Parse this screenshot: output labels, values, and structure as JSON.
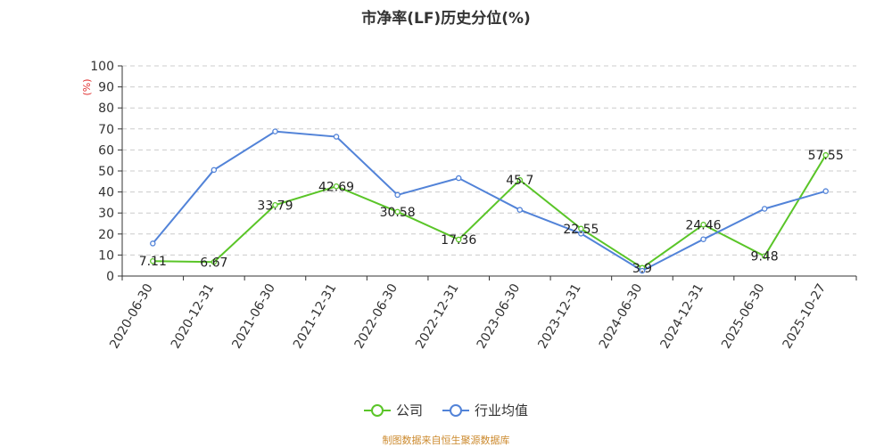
{
  "chart_data": {
    "type": "line",
    "title": "市净率(LF)历史分位(%)",
    "ylabel": "(%)",
    "ylim": [
      0,
      100
    ],
    "yticks": [
      0,
      10,
      20,
      30,
      40,
      50,
      60,
      70,
      80,
      90,
      100
    ],
    "grid": true,
    "legend_position": "bottom",
    "categories": [
      "2020-06-30",
      "2020-12-31",
      "2021-06-30",
      "2021-12-31",
      "2022-06-30",
      "2022-12-31",
      "2023-06-30",
      "2023-12-31",
      "2024-06-30",
      "2024-12-31",
      "2025-06-30",
      "2025-10-27"
    ],
    "series": [
      {
        "name": "公司",
        "color": "#5ac528",
        "values": [
          7.11,
          6.67,
          33.79,
          42.69,
          30.58,
          17.36,
          45.7,
          22.55,
          3.9,
          24.46,
          9.48,
          57.55
        ],
        "labels": [
          "7.11",
          "6.67",
          "33.79",
          "42.69",
          "30.58",
          "17.36",
          "45.7",
          "22.55",
          "3.9",
          "24.46",
          "9.48",
          "57.55"
        ]
      },
      {
        "name": "行业均值",
        "color": "#5283d8",
        "values": [
          15.5,
          50.5,
          68.8,
          66.3,
          38.6,
          46.6,
          31.5,
          20.2,
          2.5,
          17.5,
          32.0,
          40.4
        ]
      }
    ]
  },
  "source_note": "制图数据来自恒生聚源数据库"
}
